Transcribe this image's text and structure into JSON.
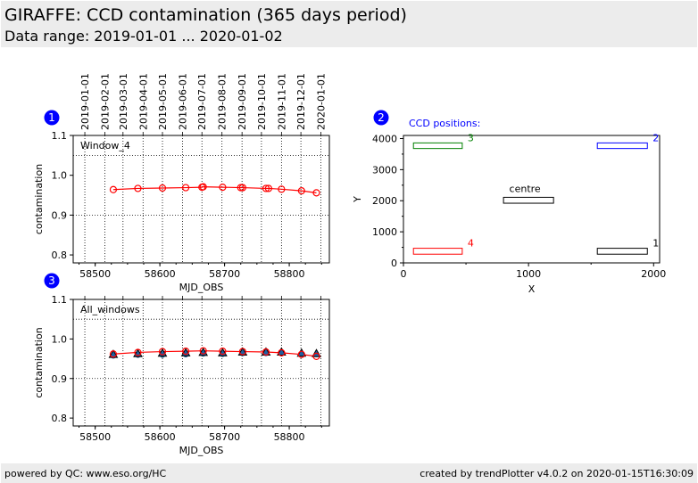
{
  "header": {
    "title": "GIRAFFE: CCD contamination (365 days period)",
    "subtitle": "Data range: 2019-01-01 ... 2020-01-02"
  },
  "footer": {
    "left": "powered by QC: www.eso.org/HC",
    "right": "created by trendPlotter v4.0.2 on 2020-01-15T16:30:09"
  },
  "colors": {
    "badge": "#0000ff",
    "series_line": "#ff0000",
    "triangle_fill": "#1f5fa0",
    "pos_1": "#000000",
    "pos_2": "#0000ff",
    "pos_3": "#008000",
    "pos_4": "#ff0000",
    "centre": "#000000",
    "ccd_title": "#0000ff"
  },
  "badges": [
    "1",
    "2",
    "3"
  ],
  "chart_data": [
    {
      "id": "plot1",
      "type": "line",
      "label": "Window_4",
      "xlabel": "MJD_OBS",
      "ylabel": "contamination",
      "xlim": [
        58466,
        58862
      ],
      "ylim": [
        0.78,
        1.1
      ],
      "xticks": [
        58500,
        58600,
        58700,
        58800
      ],
      "yticks": [
        0.8,
        0.9,
        1.0,
        1.1
      ],
      "ytick_labels": [
        "0.8",
        "0.9",
        "1.0",
        "1.1"
      ],
      "grid": "dotted",
      "hline": 1.05,
      "top_axis_date_labels": [
        "2019-01-01",
        "2019-02-01",
        "2019-03-01",
        "2019-04-01",
        "2019-05-01",
        "2019-06-01",
        "2019-07-01",
        "2019-08-01",
        "2019-09-01",
        "2019-10-01",
        "2019-11-01",
        "2019-12-01",
        "2020-01-01"
      ],
      "top_axis_date_mjd": [
        58484,
        58515,
        58543,
        58574,
        58604,
        58635,
        58665,
        58696,
        58727,
        58757,
        58788,
        58818,
        58849
      ],
      "series": [
        {
          "marker": "circle-open",
          "x": [
            58528,
            58566,
            58604,
            58640,
            58665,
            58667,
            58697,
            58725,
            58728,
            58764,
            58768,
            58788,
            58819,
            58842
          ],
          "y": [
            0.964,
            0.967,
            0.968,
            0.969,
            0.97,
            0.971,
            0.97,
            0.969,
            0.969,
            0.967,
            0.967,
            0.965,
            0.961,
            0.956
          ]
        }
      ]
    },
    {
      "id": "plot3",
      "type": "line",
      "label": "All_windows",
      "xlabel": "MJD_OBS",
      "ylabel": "contamination",
      "xlim": [
        58466,
        58862
      ],
      "ylim": [
        0.78,
        1.1
      ],
      "xticks": [
        58500,
        58600,
        58700,
        58800
      ],
      "yticks": [
        0.8,
        0.9,
        1.0,
        1.1
      ],
      "ytick_labels": [
        "0.8",
        "0.9",
        "1.0",
        "1.1"
      ],
      "grid": "dotted",
      "hline": 1.05,
      "top_axis_date_mjd": [
        58484,
        58515,
        58543,
        58574,
        58604,
        58635,
        58665,
        58696,
        58727,
        58757,
        58788,
        58818,
        58849
      ],
      "series": [
        {
          "marker": "circle-open",
          "x": [
            58528,
            58566,
            58604,
            58640,
            58667,
            58697,
            58728,
            58764,
            58788,
            58819,
            58842
          ],
          "y": [
            0.962,
            0.966,
            0.968,
            0.969,
            0.97,
            0.969,
            0.968,
            0.967,
            0.965,
            0.961,
            0.956
          ]
        },
        {
          "marker": "triangle",
          "x": [
            58528,
            58566,
            58604,
            58640,
            58667,
            58697,
            58728,
            58764,
            58788,
            58819,
            58842
          ],
          "y": [
            0.96,
            0.962,
            0.963,
            0.964,
            0.965,
            0.964,
            0.966,
            0.966,
            0.966,
            0.963,
            0.962
          ]
        },
        {
          "marker": "circle-filled",
          "x": [
            58528,
            58566,
            58604,
            58640,
            58667,
            58697,
            58728,
            58764,
            58788,
            58819,
            58842
          ],
          "y": [
            0.957,
            0.959,
            0.959,
            0.96,
            0.962,
            0.961,
            0.963,
            0.963,
            0.964,
            0.962,
            0.961
          ]
        }
      ]
    },
    {
      "id": "plot2",
      "type": "scatter",
      "title": "CCD positions:",
      "xlabel": "X",
      "ylabel": "Y",
      "xlim": [
        0,
        2048
      ],
      "ylim": [
        0,
        4100
      ],
      "xticks": [
        0,
        1000,
        2000
      ],
      "yticks": [
        0,
        1000,
        2000,
        3000,
        4000
      ],
      "windows": [
        {
          "name": "1",
          "x0": 1550,
          "x1": 1950,
          "y0": 280,
          "y1": 470,
          "label_at": "upper-right",
          "color_key": "pos_1"
        },
        {
          "name": "2",
          "x0": 1550,
          "x1": 1950,
          "y0": 3680,
          "y1": 3860,
          "label_at": "upper-right",
          "color_key": "pos_2"
        },
        {
          "name": "3",
          "x0": 80,
          "x1": 470,
          "y0": 3680,
          "y1": 3860,
          "label_at": "upper-right",
          "color_key": "pos_3"
        },
        {
          "name": "4",
          "x0": 80,
          "x1": 470,
          "y0": 280,
          "y1": 470,
          "label_at": "upper-right",
          "color_key": "pos_4"
        },
        {
          "name": "centre",
          "x0": 800,
          "x1": 1200,
          "y0": 1920,
          "y1": 2110,
          "label_at": "above",
          "color_key": "centre"
        }
      ]
    }
  ]
}
